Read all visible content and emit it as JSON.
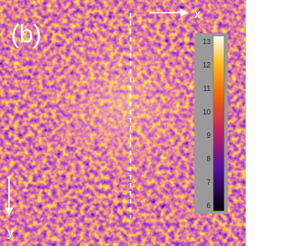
{
  "panel_label": "(b)",
  "axes": {
    "x": "x",
    "y": "y"
  },
  "colorbar": {
    "ticks": [
      13,
      12,
      11,
      10,
      9,
      8,
      7,
      6
    ]
  }
}
